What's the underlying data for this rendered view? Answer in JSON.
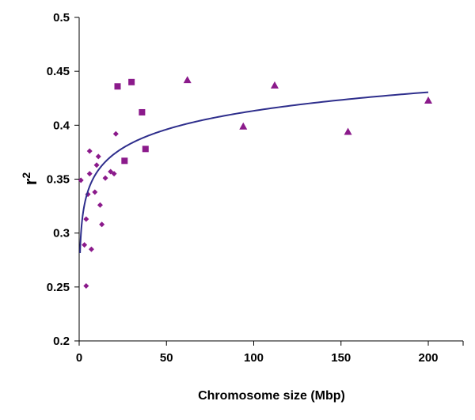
{
  "chart_data": {
    "type": "scatter",
    "title": "",
    "xlabel": "Chromosome size (Mbp)",
    "ylabel_main": "r",
    "ylabel_sup": "2",
    "xlim": [
      0,
      220
    ],
    "ylim": [
      0.2,
      0.5
    ],
    "x_ticks": [
      "0",
      "50",
      "100",
      "150",
      "200"
    ],
    "y_ticks": [
      "0.2",
      "0.25",
      "0.3",
      "0.35",
      "0.4",
      "0.45",
      "0.5"
    ],
    "grid": false,
    "legend": "none",
    "marker_color": "#8B1A8B",
    "line_color": "#2E2E8C",
    "series": [
      {
        "marker": "diamond",
        "points": [
          {
            "x": 1,
            "y": 0.349
          },
          {
            "x": 3,
            "y": 0.289
          },
          {
            "x": 4,
            "y": 0.313
          },
          {
            "x": 4,
            "y": 0.251
          },
          {
            "x": 5,
            "y": 0.336
          },
          {
            "x": 6,
            "y": 0.355
          },
          {
            "x": 6,
            "y": 0.376
          },
          {
            "x": 7,
            "y": 0.285
          },
          {
            "x": 9,
            "y": 0.338
          },
          {
            "x": 10,
            "y": 0.363
          },
          {
            "x": 11,
            "y": 0.371
          },
          {
            "x": 12,
            "y": 0.326
          },
          {
            "x": 13,
            "y": 0.308
          },
          {
            "x": 15,
            "y": 0.351
          },
          {
            "x": 18,
            "y": 0.357
          },
          {
            "x": 20,
            "y": 0.355
          },
          {
            "x": 21,
            "y": 0.392
          }
        ]
      },
      {
        "marker": "square",
        "points": [
          {
            "x": 22,
            "y": 0.436
          },
          {
            "x": 26,
            "y": 0.367
          },
          {
            "x": 30,
            "y": 0.44
          },
          {
            "x": 36,
            "y": 0.412
          },
          {
            "x": 38,
            "y": 0.378
          }
        ]
      },
      {
        "marker": "triangle",
        "points": [
          {
            "x": 62,
            "y": 0.442
          },
          {
            "x": 94,
            "y": 0.399
          },
          {
            "x": 112,
            "y": 0.437
          },
          {
            "x": 154,
            "y": 0.394
          },
          {
            "x": 200,
            "y": 0.423
          }
        ]
      }
    ],
    "trendline": {
      "type": "logarithmic",
      "a": 0.0249,
      "b": 0.2987,
      "x_range": [
        0.5,
        200
      ]
    }
  }
}
